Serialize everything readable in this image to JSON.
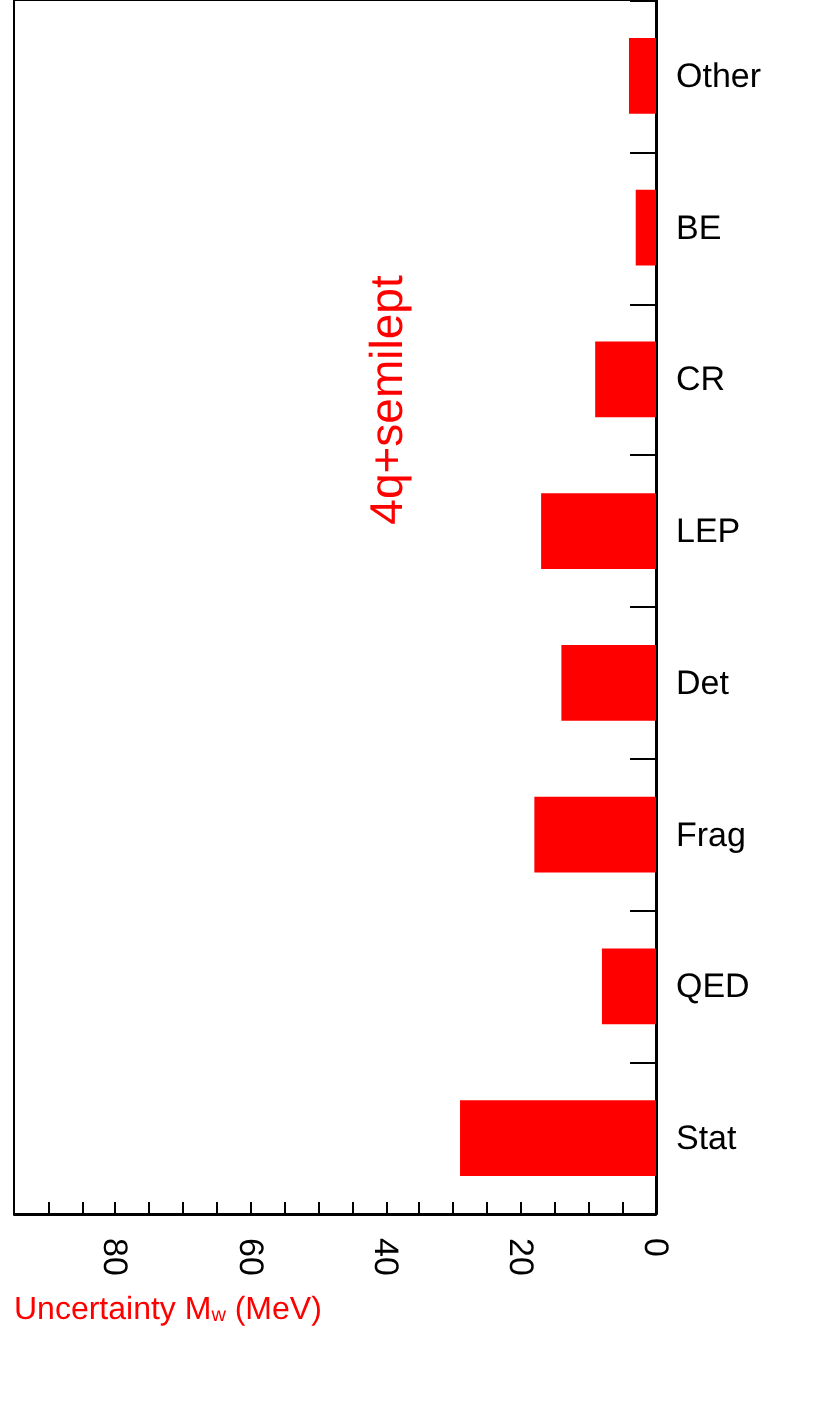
{
  "chart_data": {
    "type": "bar",
    "orientation": "horizontal",
    "categories": [
      "Other",
      "BE",
      "CR",
      "LEP",
      "Det",
      "Frag",
      "QED",
      "Stat"
    ],
    "values": [
      4,
      3,
      9,
      17,
      14,
      18,
      8,
      29
    ],
    "color": "#ff0000",
    "xlabel": "Uncertainty M$_{w}$ (MeV)",
    "annotations": [
      "4q+semilept"
    ],
    "xlim": [
      95,
      0
    ],
    "xticks": [
      0,
      {
        "value": 5,
        "label": null
      },
      {
        "value": 10,
        "label": null
      },
      {
        "value": 15,
        "label": null
      },
      20,
      {
        "value": 25,
        "label": null
      },
      {
        "value": 30,
        "label": null
      },
      {
        "value": 35,
        "label": null
      },
      40,
      {
        "value": 45,
        "label": null
      },
      {
        "value": 50,
        "label": null
      },
      {
        "value": 55,
        "label": null
      },
      60,
      {
        "value": 65,
        "label": null
      },
      {
        "value": 70,
        "label": null
      },
      {
        "value": 75,
        "label": null
      },
      80,
      {
        "value": 85,
        "label": null
      },
      {
        "value": 90,
        "label": null
      }
    ],
    "grid": false
  }
}
